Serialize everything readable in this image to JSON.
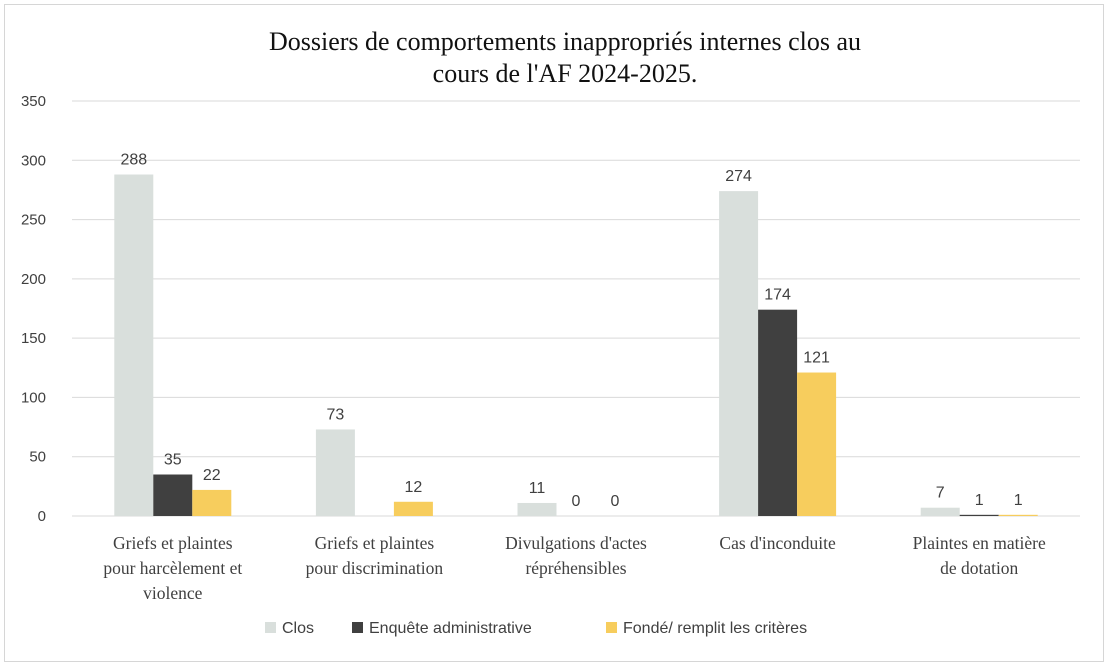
{
  "chart_data": {
    "type": "bar",
    "title_lines": [
      "Dossiers de comportements inappropriés internes clos au",
      "cours de l'AF 2024-2025."
    ],
    "categories": [
      [
        "Griefs et plaintes",
        "pour harcèlement et",
        "violence"
      ],
      [
        "Griefs et plaintes",
        "pour discrimination"
      ],
      [
        "Divulgations d'actes",
        "répréhensibles"
      ],
      [
        "Cas d'inconduite"
      ],
      [
        "Plaintes en matière",
        "de dotation"
      ]
    ],
    "series": [
      {
        "name": "Clos",
        "color": "#d9dfdc",
        "values": [
          288,
          73,
          11,
          274,
          7
        ]
      },
      {
        "name": "Enquête administrative",
        "color": "#404040",
        "values": [
          35,
          0,
          0,
          174,
          1
        ]
      },
      {
        "name": "Fondé/ remplit les critères",
        "color": "#f7cd5d",
        "values": [
          22,
          12,
          0,
          121,
          1
        ]
      }
    ],
    "data_labels": [
      [
        "288",
        "73",
        "11",
        "274",
        "7"
      ],
      [
        "35",
        "",
        "0",
        "174",
        "1"
      ],
      [
        "22",
        "12",
        "0",
        "121",
        "1"
      ]
    ],
    "y_ticks": [
      0,
      50,
      100,
      150,
      200,
      250,
      300,
      350
    ],
    "ylim": [
      0,
      350
    ],
    "xlabel": "",
    "ylabel": "",
    "grid": true,
    "legend_position": "bottom"
  }
}
